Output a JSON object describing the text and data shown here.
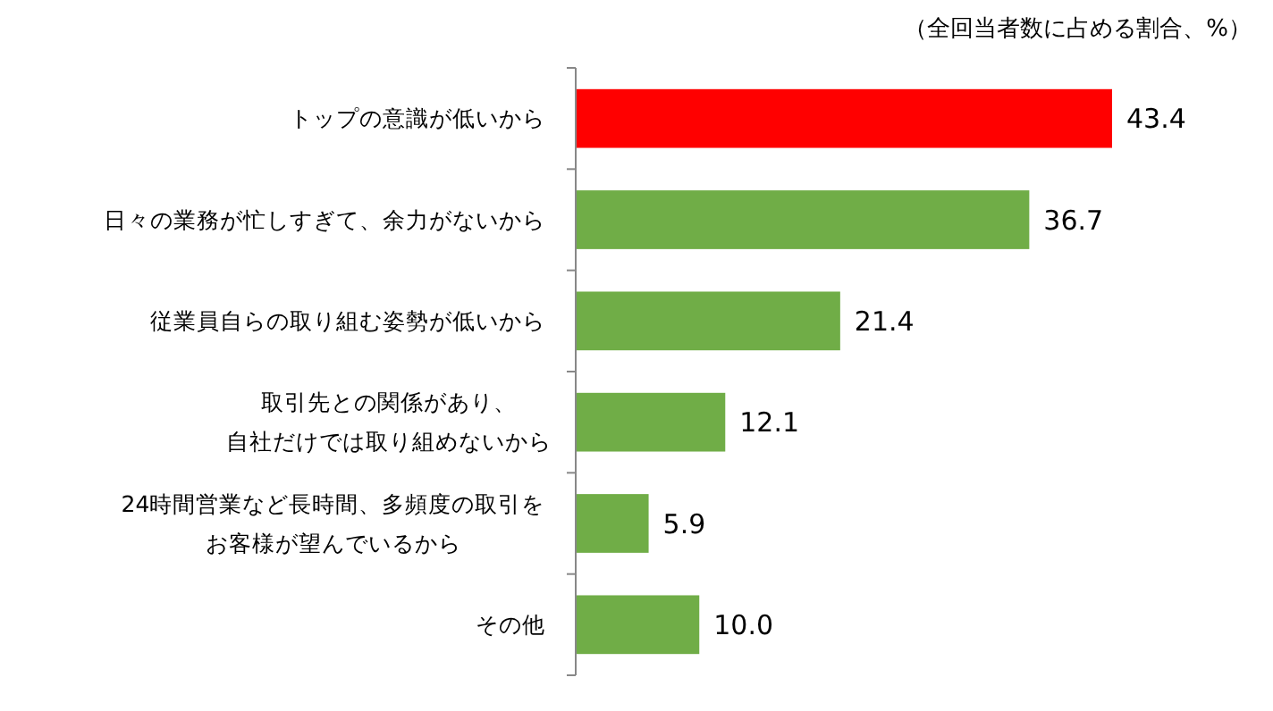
{
  "chart_data": {
    "type": "bar",
    "orientation": "horizontal",
    "annotations": [
      "（全回当者数に占める割合、%）"
    ],
    "categories": [
      "トップの意識が低いから",
      "日々の業務が忙しすぎて、余力がないから",
      "従業員自らの取り組む姿勢が低いから",
      "取引先との関係があり、自社だけでは取り組めないから",
      "24時間営業など長時間、多頻度の取引をお客様が望んでいるから",
      "その他"
    ],
    "values": [
      43.4,
      36.7,
      21.4,
      12.1,
      5.9,
      10.0
    ],
    "value_labels": [
      "43.4",
      "36.7",
      "21.4",
      "12.1",
      "5.9",
      "10.0"
    ],
    "colors": [
      "#ff0000",
      "#70ad47",
      "#70ad47",
      "#70ad47",
      "#70ad47",
      "#70ad47"
    ]
  }
}
